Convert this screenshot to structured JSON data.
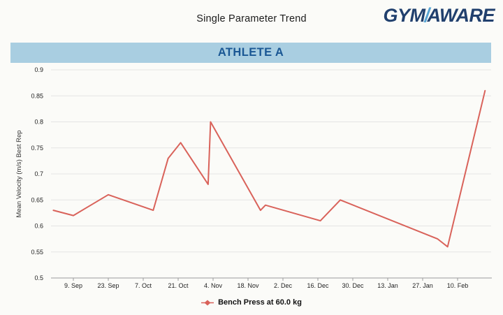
{
  "header": {
    "title": "Single Parameter Trend",
    "logo": {
      "part1": "GYM",
      "slash": "/",
      "part2": "AWARE"
    }
  },
  "athlete_banner": {
    "label": "ATHLETE A"
  },
  "colors": {
    "line": "#d9625a",
    "banner_bg": "#a9cee1",
    "banner_text": "#1a5794",
    "logo_primary": "#21406e",
    "logo_accent": "#58a4d3",
    "grid": "#e4e4e4",
    "axis": "#9b9b9b",
    "tick_text": "#222222"
  },
  "chart_data": {
    "type": "line",
    "title": "Single Parameter Trend",
    "ylabel": "Mean Velocity (m/s) Best Rep",
    "xlabel": "",
    "ylim": [
      0.5,
      0.9
    ],
    "grid": true,
    "legend_position": "bottom",
    "y_ticks": [
      {
        "value": 0.9,
        "label": "0.9"
      },
      {
        "value": 0.85,
        "label": "0.85"
      },
      {
        "value": 0.8,
        "label": "0.8"
      },
      {
        "value": 0.75,
        "label": "0.75"
      },
      {
        "value": 0.7,
        "label": "0.7"
      },
      {
        "value": 0.65,
        "label": "0.65"
      },
      {
        "value": 0.6,
        "label": "0.6"
      },
      {
        "value": 0.55,
        "label": "0.55"
      },
      {
        "value": 0.5,
        "label": "0.5"
      }
    ],
    "x_ticks": [
      {
        "day": 8,
        "label": "9. Sep"
      },
      {
        "day": 22,
        "label": "23. Sep"
      },
      {
        "day": 36,
        "label": "7. Oct"
      },
      {
        "day": 50,
        "label": "21. Oct"
      },
      {
        "day": 64,
        "label": "4. Nov"
      },
      {
        "day": 78,
        "label": "18. Nov"
      },
      {
        "day": 92,
        "label": "2. Dec"
      },
      {
        "day": 106,
        "label": "16. Dec"
      },
      {
        "day": 120,
        "label": "30. Dec"
      },
      {
        "day": 134,
        "label": "13. Jan"
      },
      {
        "day": 148,
        "label": "27. Jan"
      },
      {
        "day": 162,
        "label": "10. Feb"
      }
    ],
    "series": [
      {
        "name": "Bench Press at 60.0 kg",
        "color": "#d9625a",
        "points": [
          {
            "day": 0,
            "value": 0.63
          },
          {
            "day": 8,
            "value": 0.62
          },
          {
            "day": 22,
            "value": 0.66
          },
          {
            "day": 40,
            "value": 0.63
          },
          {
            "day": 46,
            "value": 0.73
          },
          {
            "day": 51,
            "value": 0.76
          },
          {
            "day": 62,
            "value": 0.68
          },
          {
            "day": 63,
            "value": 0.8
          },
          {
            "day": 83,
            "value": 0.63
          },
          {
            "day": 85,
            "value": 0.64
          },
          {
            "day": 107,
            "value": 0.61
          },
          {
            "day": 115,
            "value": 0.65
          },
          {
            "day": 154,
            "value": 0.575
          },
          {
            "day": 158,
            "value": 0.56
          },
          {
            "day": 173,
            "value": 0.86
          }
        ]
      }
    ]
  }
}
